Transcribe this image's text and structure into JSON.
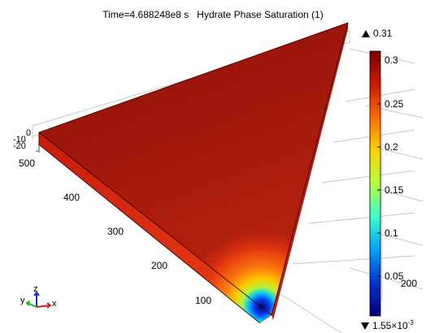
{
  "header": {
    "time_label": "Time=4.688248e8 s",
    "quantity_label": "Hydrate Phase Saturation (1)"
  },
  "colorbar": {
    "max_label": "0.31",
    "min_label": "1.55×10",
    "min_exponent": "-3",
    "ticks": [
      "0.3",
      "0.25",
      "0.2",
      "0.15",
      "0.1",
      "0.05"
    ],
    "colors": [
      "#7f0000",
      "#c81a00",
      "#ff6a00",
      "#ffd200",
      "#b4ff3c",
      "#3cffc8",
      "#00a0ff",
      "#0032d2",
      "#000080"
    ]
  },
  "axes": {
    "y_ticks": [
      "500",
      "400",
      "300",
      "200",
      "100"
    ],
    "z_ticks": [
      "0",
      "-10",
      "-20"
    ],
    "x_ticks": [
      "200"
    ]
  },
  "triad": {
    "y": "y",
    "z": "z",
    "x": "x"
  }
}
